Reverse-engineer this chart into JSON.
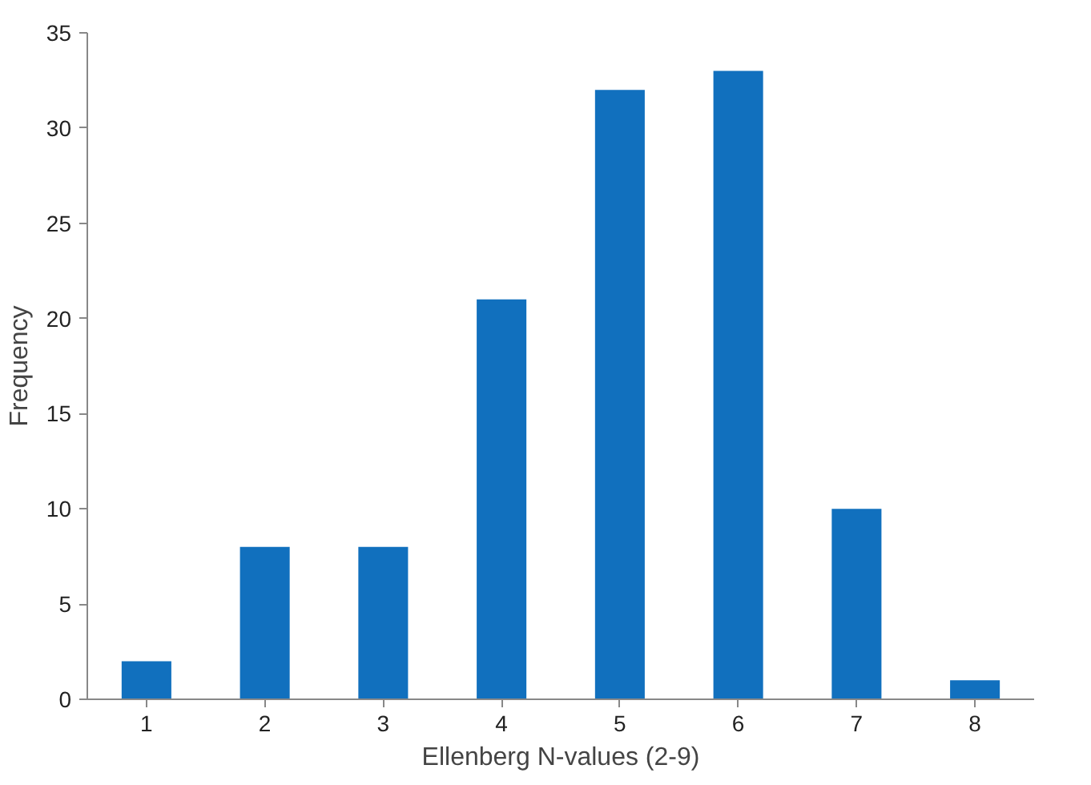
{
  "chart_data": {
    "type": "bar",
    "xlabel": "Ellenberg N-values (2-9)",
    "ylabel": "Frequency",
    "categories": [
      "1",
      "2",
      "3",
      "4",
      "5",
      "6",
      "7",
      "8"
    ],
    "values": [
      2,
      8,
      8,
      21,
      32,
      33,
      10,
      1
    ],
    "color": "#1170be",
    "ylim": [
      0,
      35
    ],
    "yticks": [
      0,
      5,
      10,
      15,
      20,
      25,
      30,
      35
    ],
    "grid": false
  }
}
